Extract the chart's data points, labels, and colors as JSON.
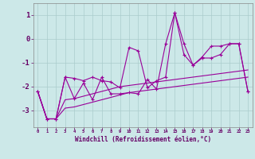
{
  "xlabel": "Windchill (Refroidissement éolien,°C)",
  "x": [
    0,
    1,
    2,
    3,
    4,
    5,
    6,
    7,
    8,
    9,
    10,
    11,
    12,
    13,
    14,
    15,
    16,
    17,
    18,
    19,
    20,
    21,
    22,
    23
  ],
  "line_zigzag1": [
    -2.2,
    -3.35,
    -3.35,
    -1.6,
    -1.65,
    -1.75,
    -1.6,
    -1.75,
    -1.8,
    -2.05,
    -0.35,
    -0.5,
    -2.05,
    -1.75,
    -1.6,
    1.1,
    -0.2,
    -1.1,
    -0.75,
    -0.3,
    -0.3,
    -0.2,
    -0.2,
    -2.2
  ],
  "line_zigzag2": [
    -2.2,
    -3.35,
    -3.35,
    -1.6,
    -2.5,
    -1.85,
    -2.55,
    -1.6,
    -2.3,
    -2.3,
    -2.25,
    -2.3,
    -1.7,
    -2.1,
    -0.2,
    1.1,
    -0.65,
    -1.1,
    -0.8,
    -0.8,
    -0.65,
    -0.2,
    -0.2,
    -2.2
  ],
  "line_trend1": [
    -2.2,
    -3.35,
    -3.35,
    -2.55,
    -2.5,
    -2.4,
    -2.3,
    -2.2,
    -2.1,
    -2.0,
    -1.95,
    -1.9,
    -1.85,
    -1.8,
    -1.75,
    -1.7,
    -1.65,
    -1.6,
    -1.55,
    -1.5,
    -1.45,
    -1.4,
    -1.35,
    -1.3
  ],
  "line_trend2": [
    -2.2,
    -3.35,
    -3.35,
    -2.9,
    -2.85,
    -2.75,
    -2.65,
    -2.55,
    -2.45,
    -2.35,
    -2.25,
    -2.2,
    -2.15,
    -2.1,
    -2.05,
    -2.0,
    -1.95,
    -1.9,
    -1.85,
    -1.8,
    -1.75,
    -1.7,
    -1.65,
    -1.6
  ],
  "ylim": [
    -3.7,
    1.5
  ],
  "yticks": [
    1,
    0,
    -1,
    -2,
    -3
  ],
  "bg_color": "#cce8e8",
  "line_color": "#990099",
  "grid_color": "#aacccc",
  "tick_color": "#660066",
  "font_color": "#660066"
}
